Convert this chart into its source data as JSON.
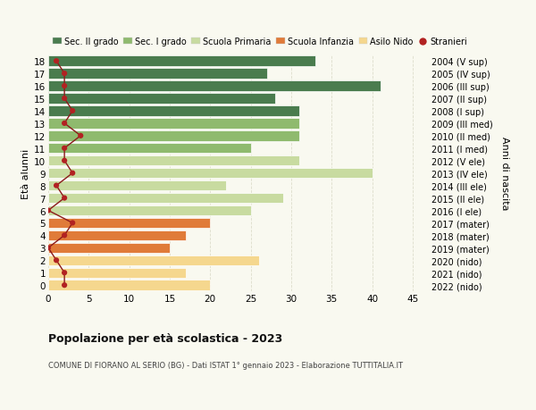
{
  "ages": [
    0,
    1,
    2,
    3,
    4,
    5,
    6,
    7,
    8,
    9,
    10,
    11,
    12,
    13,
    14,
    15,
    16,
    17,
    18
  ],
  "right_labels": [
    "2022 (nido)",
    "2021 (nido)",
    "2020 (nido)",
    "2019 (mater)",
    "2018 (mater)",
    "2017 (mater)",
    "2016 (I ele)",
    "2015 (II ele)",
    "2014 (III ele)",
    "2013 (IV ele)",
    "2012 (V ele)",
    "2011 (I med)",
    "2010 (II med)",
    "2009 (III med)",
    "2008 (I sup)",
    "2007 (II sup)",
    "2006 (III sup)",
    "2005 (IV sup)",
    "2004 (V sup)"
  ],
  "bar_values": [
    20,
    17,
    26,
    15,
    17,
    20,
    25,
    29,
    22,
    40,
    31,
    25,
    31,
    31,
    31,
    28,
    41,
    27,
    33
  ],
  "bar_colors": [
    "#f5d78e",
    "#f5d78e",
    "#f5d78e",
    "#e07b39",
    "#e07b39",
    "#e07b39",
    "#c8dba0",
    "#c8dba0",
    "#c8dba0",
    "#c8dba0",
    "#c8dba0",
    "#8fba6e",
    "#8fba6e",
    "#8fba6e",
    "#4a7c4e",
    "#4a7c4e",
    "#4a7c4e",
    "#4a7c4e",
    "#4a7c4e"
  ],
  "stranieri_values": [
    2,
    2,
    1,
    0,
    2,
    3,
    0,
    2,
    1,
    3,
    2,
    2,
    4,
    2,
    3,
    2,
    2,
    2,
    1
  ],
  "legend_labels": [
    "Sec. II grado",
    "Sec. I grado",
    "Scuola Primaria",
    "Scuola Infanzia",
    "Asilo Nido",
    "Stranieri"
  ],
  "legend_colors": [
    "#4a7c4e",
    "#8fba6e",
    "#c8dba0",
    "#e07b39",
    "#f5d78e",
    "#b22222"
  ],
  "ylabel_left": "Età alunni",
  "ylabel_right": "Anni di nascita",
  "xlim": [
    0,
    47
  ],
  "xticks": [
    0,
    5,
    10,
    15,
    20,
    25,
    30,
    35,
    40,
    45
  ],
  "title": "Popolazione per età scolastica - 2023",
  "subtitle": "COMUNE DI FIORANO AL SERIO (BG) - Dati ISTAT 1° gennaio 2023 - Elaborazione TUTTITALIA.IT",
  "background_color": "#f9f9f0",
  "grid_color": "#ddddcc"
}
